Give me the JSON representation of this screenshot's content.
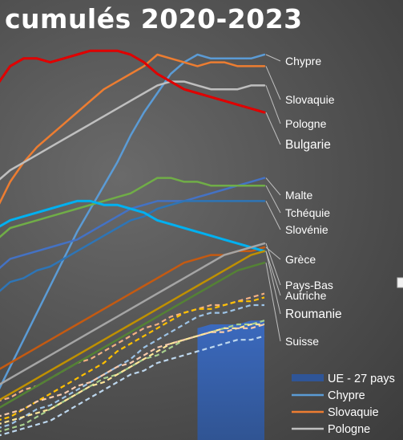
{
  "chart_data": {
    "type": "line",
    "title": "cumulés 2020-2023",
    "x_points": 21,
    "ylim": [
      0,
      100
    ],
    "series": [
      {
        "name": "Chypre",
        "color": "#5b9bd5",
        "label_color": "#ffffff",
        "width": 2.5,
        "values": [
          12,
          19,
          26,
          33,
          40,
          47,
          54,
          60,
          66,
          72,
          79,
          85,
          90,
          95,
          98,
          100,
          99,
          99,
          99,
          99,
          100
        ]
      },
      {
        "name": "Slovaquie",
        "color": "#ed7d31",
        "label_color": "#ffffff",
        "width": 2.5,
        "values": [
          60,
          67,
          72,
          76,
          79,
          82,
          85,
          88,
          91,
          93,
          95,
          97,
          100,
          99,
          98,
          97,
          98,
          98,
          97,
          97,
          97
        ]
      },
      {
        "name": "Pologne",
        "color": "#bfbfbf",
        "label_color": "#ffffff",
        "width": 2.5,
        "values": [
          67,
          70,
          72,
          74,
          76,
          78,
          80,
          82,
          84,
          86,
          88,
          90,
          92,
          93,
          93,
          92,
          91,
          91,
          91,
          92,
          92
        ]
      },
      {
        "name": "Bulgarie",
        "color": "#e00000",
        "label_color": "#ff1a1a",
        "width": 3,
        "values": [
          92,
          97,
          99,
          99,
          98,
          99,
          100,
          101,
          101,
          101,
          100,
          98,
          95,
          93,
          91,
          90,
          89,
          88,
          87,
          86,
          85
        ]
      },
      {
        "name": "Malte",
        "color": "#4472c4",
        "label_color": "#ffffff",
        "width": 2.5,
        "values": [
          44,
          47,
          48,
          49,
          50,
          51,
          52,
          54,
          56,
          58,
          60,
          61,
          62,
          62,
          62,
          63,
          64,
          65,
          66,
          67,
          68
        ]
      },
      {
        "name": "Tchéquie",
        "color": "#70ad47",
        "label_color": "#ffffff",
        "width": 2.5,
        "values": [
          52,
          55,
          56,
          57,
          58,
          59,
          60,
          61,
          62,
          63,
          64,
          66,
          68,
          68,
          67,
          67,
          66,
          66,
          66,
          66,
          66
        ]
      },
      {
        "name": "Slovénie",
        "color": "#2e75b6",
        "label_color": "#ffffff",
        "width": 2.5,
        "values": [
          38,
          41,
          42,
          44,
          45,
          47,
          49,
          51,
          53,
          55,
          57,
          58,
          60,
          61,
          62,
          62,
          62,
          62,
          62,
          62,
          62
        ]
      },
      {
        "name": "Grèce",
        "color": "#c55a11",
        "label_color": "#ffffff",
        "width": 2.5,
        "values": [
          18,
          20,
          22,
          24,
          26,
          28,
          30,
          32,
          34,
          36,
          38,
          40,
          42,
          44,
          46,
          47,
          48,
          48,
          49,
          49,
          50
        ]
      },
      {
        "name": "Roumanie",
        "color": "#00b0f0",
        "label_color": "#00b0f0",
        "width": 3,
        "values": [
          55,
          57,
          58,
          59,
          60,
          61,
          62,
          62,
          61,
          61,
          60,
          59,
          57,
          56,
          55,
          54,
          53,
          52,
          51,
          50,
          49
        ]
      },
      {
        "name": "Pays-Bas",
        "color": "#a5a5a5",
        "label_color": "#ffffff",
        "width": 2.5,
        "values": [
          14,
          16,
          18,
          20,
          22,
          24,
          26,
          28,
          30,
          32,
          34,
          36,
          38,
          40,
          42,
          44,
          46,
          48,
          49,
          50,
          51
        ]
      },
      {
        "name": "Autriche",
        "color": "#bf9000",
        "label_color": "#ffffff",
        "width": 2.5,
        "values": [
          10,
          12,
          14,
          16,
          18,
          20,
          22,
          24,
          26,
          28,
          30,
          32,
          34,
          36,
          38,
          40,
          42,
          44,
          46,
          48,
          49
        ]
      },
      {
        "name": "Suisse",
        "color": "#548235",
        "label_color": "#ffffff",
        "width": 2.5,
        "values": [
          8,
          10,
          12,
          14,
          16,
          18,
          20,
          22,
          24,
          26,
          28,
          30,
          32,
          34,
          36,
          38,
          40,
          42,
          44,
          45,
          46
        ]
      }
    ],
    "labels": {
      "Chypre": "Chypre",
      "Slovaquie": "Slovaquie",
      "Pologne": "Pologne",
      "Bulgarie": "Bulgarie",
      "Malte": "Malte",
      "Tchéquie": "Tchéquie",
      "Slovénie": "Slovénie",
      "Grèce": "Grèce",
      "Pays-Bas": "Pays-Bas",
      "Autriche": "Autriche",
      "Roumanie": "Roumanie",
      "Suisse": "Suisse"
    },
    "background_series": [
      {
        "color": "#f4b183",
        "values": [
          10,
          11,
          13,
          14,
          16,
          18,
          20,
          21,
          23,
          25,
          27,
          29,
          30,
          32,
          33,
          34,
          35,
          35,
          36,
          37,
          38
        ]
      },
      {
        "color": "#ffc000",
        "values": [
          5,
          6,
          8,
          10,
          12,
          14,
          16,
          18,
          20,
          23,
          25,
          27,
          29,
          31,
          33,
          34,
          34,
          35,
          36,
          36,
          37
        ]
      },
      {
        "color": "#9dc3e6",
        "values": [
          3,
          4,
          6,
          8,
          9,
          11,
          13,
          15,
          17,
          19,
          21,
          24,
          26,
          28,
          30,
          32,
          33,
          33,
          34,
          35,
          35
        ]
      },
      {
        "color": "#a9d18e",
        "values": [
          2,
          3,
          4,
          6,
          8,
          10,
          12,
          14,
          16,
          17,
          19,
          21,
          22,
          24,
          26,
          27,
          28,
          29,
          30,
          30,
          31
        ]
      },
      {
        "color": "#f8cbad",
        "values": [
          6,
          7,
          8,
          10,
          11,
          12,
          14,
          15,
          17,
          19,
          20,
          22,
          24,
          25,
          26,
          27,
          28,
          28,
          29,
          29,
          30
        ]
      },
      {
        "color": "#bdd7ee",
        "values": [
          1,
          2,
          3,
          4,
          5,
          7,
          9,
          11,
          13,
          15,
          17,
          18,
          20,
          21,
          22,
          23,
          24,
          25,
          26,
          26,
          27
        ]
      },
      {
        "color": "#ffe699",
        "values": [
          4,
          5,
          6,
          7,
          8,
          10,
          12,
          14,
          15,
          17,
          19,
          21,
          23,
          25,
          26,
          27,
          28,
          29,
          29,
          30,
          30
        ]
      }
    ],
    "legend": {
      "position": "bottom-right",
      "items": [
        {
          "label": "UE - 27 pays",
          "color": "#2f5597",
          "kind": "area"
        },
        {
          "label": "Chypre",
          "color": "#5b9bd5",
          "kind": "line"
        },
        {
          "label": "Slovaquie",
          "color": "#ed7d31",
          "kind": "line"
        },
        {
          "label": "Pologne",
          "color": "#bfbfbf",
          "kind": "line"
        }
      ]
    },
    "area_series": {
      "name": "UE - 27 pays",
      "color": "#2f5597",
      "values": [
        null,
        null,
        null,
        null,
        null,
        null,
        null,
        null,
        null,
        null,
        null,
        null,
        null,
        null,
        null,
        29,
        30,
        30,
        30,
        31,
        31
      ]
    }
  }
}
